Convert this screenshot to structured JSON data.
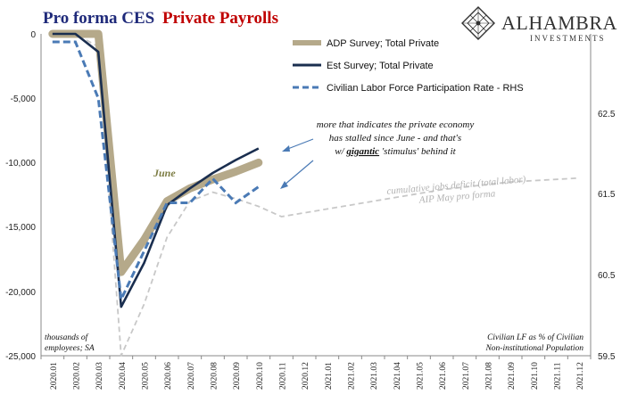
{
  "title": {
    "part1": "Pro forma CES",
    "part2": "Private Payrolls",
    "color1": "#1f2a7a",
    "color2": "#c00000"
  },
  "brand": {
    "name": "ALHAMBRA",
    "sub": "INVESTMENTS",
    "icon": "diamond-lattice-logo"
  },
  "chart_data": {
    "type": "line",
    "categories": [
      "2020.01",
      "2020.02",
      "2020.03",
      "2020.04",
      "2020.05",
      "2020.06",
      "2020.07",
      "2020.08",
      "2020.09",
      "2020.10",
      "2020.11",
      "2020.12",
      "2021.01",
      "2021.02",
      "2021.03",
      "2021.04",
      "2021.05",
      "2021.06",
      "2021.07",
      "2021.08",
      "2021.09",
      "2021.10",
      "2021.11",
      "2021.12"
    ],
    "ylim": [
      -25000,
      0
    ],
    "y_ticks": [
      "0",
      "-5,000",
      "-10,000",
      "-15,000",
      "-20,000",
      "-25,000"
    ],
    "y2lim": [
      59.5,
      63.5
    ],
    "y2_ticks": [
      "62.5",
      "61.5",
      "60.5",
      "59.5"
    ],
    "series": [
      {
        "name": "ADP Survey; Total Private",
        "axis": "left",
        "color": "#b5a98a",
        "values": [
          0,
          0,
          0,
          -18500,
          -16000,
          -13000,
          -12000,
          -11300,
          -10700,
          -10000,
          null,
          null,
          null,
          null,
          null,
          null,
          null,
          null,
          null,
          null,
          null,
          null,
          null,
          null
        ]
      },
      {
        "name": "Est Survey; Total Private",
        "axis": "left",
        "color": "#1a2e4f",
        "values": [
          0,
          0,
          -1400,
          -21200,
          -17800,
          -13300,
          -12000,
          -10800,
          -9800,
          -8900,
          null,
          null,
          null,
          null,
          null,
          null,
          null,
          null,
          null,
          null,
          null,
          null,
          null,
          null
        ]
      },
      {
        "name": "Civilian Labor Force Participation Rate - RHS",
        "axis": "right",
        "color": "#4a7ab5",
        "values": [
          63.4,
          63.4,
          62.7,
          60.2,
          60.8,
          61.4,
          61.4,
          61.7,
          61.4,
          61.6,
          null,
          null,
          null,
          null,
          null,
          null,
          null,
          null,
          null,
          null,
          null,
          null,
          null,
          null
        ]
      }
    ],
    "projection": {
      "axis": "left",
      "color": "#c8c8c8",
      "values": [
        0,
        0,
        -1000,
        -25000,
        -21000,
        -15800,
        -13000,
        -12300,
        -12800,
        -13400,
        -14200,
        -13900,
        -13600,
        -13300,
        -13000,
        -12700,
        -12400,
        -12100,
        -11900,
        -11700,
        -11500,
        -11400,
        -11300,
        -11200
      ]
    }
  },
  "legend": [
    {
      "label": "ADP Survey; Total Private",
      "color": "#b5a98a",
      "style": "thick-solid"
    },
    {
      "label": "Est Survey; Total Private",
      "color": "#1a2e4f",
      "style": "solid"
    },
    {
      "label": "Civilian Labor Force Participation Rate - RHS",
      "color": "#4a7ab5",
      "style": "dashed"
    }
  ],
  "annotations": {
    "stalled_line1": "more that indicates the private economy",
    "stalled_line2": "has stalled since June - and that's",
    "stalled_line3_pre": "w/ ",
    "stalled_line3_em": "gigantic",
    "stalled_line3_post": " 'stimulus' behind it",
    "june": "June",
    "deficit1": "cumulative jobs deficit (total labor)",
    "deficit2": "AIP May pro forma",
    "left_unit1": "thousands of",
    "left_unit2": "employees; SA",
    "right_unit1": "Civilian LF as % of Civilian",
    "right_unit2": "Non-institutional Population"
  }
}
